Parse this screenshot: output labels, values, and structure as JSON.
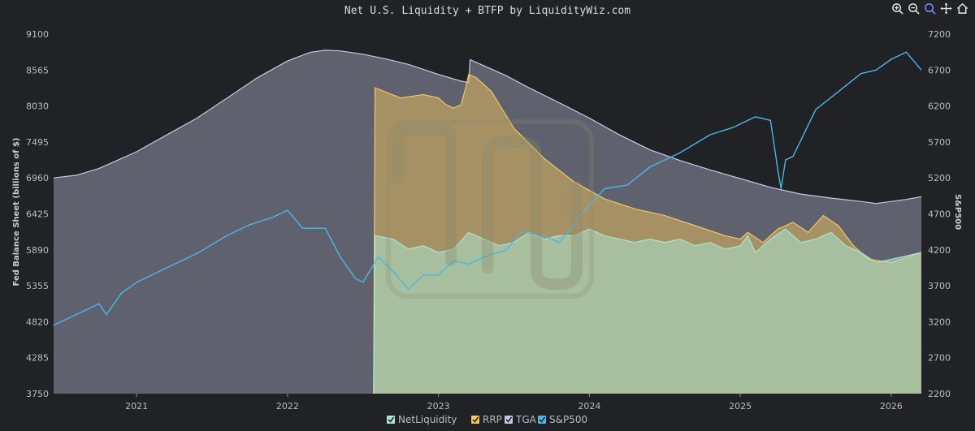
{
  "toolbar": {
    "icons": [
      "zoom-in-icon",
      "zoom-out-icon",
      "magnifier-icon",
      "pan-icon",
      "home-icon"
    ],
    "active": "magnifier-icon"
  },
  "chart_data": {
    "type": "area",
    "title": "Net U.S. Liquidity + BTFP by LiquidityWiz.com",
    "ylabel": "Fed Balance Sheet (billions of $)",
    "y2label": "S&P500",
    "xlim": [
      2020.45,
      2026.2
    ],
    "ylim": [
      3750,
      9100
    ],
    "y2lim": [
      2200,
      7200
    ],
    "x_ticks": [
      2021,
      2022,
      2023,
      2024,
      2025,
      2026
    ],
    "x_tick_labels": [
      "2021",
      "2022",
      "2023",
      "2024",
      "2025",
      "2026"
    ],
    "y_ticks": [
      3750,
      4285,
      4820,
      5355,
      5890,
      6425,
      6960,
      7495,
      8030,
      8565,
      9100
    ],
    "y2_ticks": [
      2200,
      2700,
      3200,
      3700,
      4200,
      4700,
      5200,
      5700,
      6200,
      6700,
      7200
    ],
    "legend_position": "bottom",
    "colors": {
      "NetLiquidity": "#a8e6cf",
      "RRP": "#f5c75a",
      "TGA": "#c8c8e6",
      "S&P500": "#4ab8e6",
      "background": "#202226",
      "watermark": "#8a8a6a"
    },
    "series": [
      {
        "name": "TGA",
        "axis": "left",
        "x": [
          2020.45,
          2020.6,
          2020.75,
          2020.9,
          2021.0,
          2021.2,
          2021.4,
          2021.6,
          2021.8,
          2022.0,
          2022.15,
          2022.25,
          2022.35,
          2022.5,
          2022.65,
          2022.8,
          2023.0,
          2023.15,
          2023.2,
          2023.21,
          2023.3,
          2023.45,
          2023.6,
          2023.8,
          2024.0,
          2024.2,
          2024.4,
          2024.6,
          2024.8,
          2025.0,
          2025.2,
          2025.4,
          2025.6,
          2025.8,
          2025.9,
          2026.0,
          2026.1,
          2026.2
        ],
        "values": [
          6960,
          7000,
          7100,
          7250,
          7350,
          7600,
          7850,
          8150,
          8450,
          8700,
          8830,
          8860,
          8850,
          8800,
          8730,
          8650,
          8500,
          8400,
          8380,
          8720,
          8630,
          8480,
          8300,
          8080,
          7850,
          7600,
          7380,
          7220,
          7080,
          6950,
          6820,
          6720,
          6660,
          6610,
          6580,
          6610,
          6640,
          6680
        ]
      },
      {
        "name": "RRP",
        "axis": "left",
        "x": [
          2022.57,
          2022.58,
          2022.75,
          2022.9,
          2023.0,
          2023.05,
          2023.1,
          2023.15,
          2023.18,
          2023.2,
          2023.25,
          2023.35,
          2023.5,
          2023.7,
          2023.9,
          2024.1,
          2024.3,
          2024.5,
          2024.7,
          2024.9,
          2025.0,
          2025.05,
          2025.15,
          2025.25,
          2025.35,
          2025.45,
          2025.55,
          2025.65,
          2025.75,
          2025.85,
          2026.0,
          2026.2
        ],
        "values": [
          3750,
          8300,
          8150,
          8200,
          8150,
          8050,
          8000,
          8050,
          8300,
          8500,
          8450,
          8250,
          7700,
          7250,
          6900,
          6650,
          6500,
          6400,
          6250,
          6100,
          6050,
          6150,
          6000,
          6200,
          6300,
          6150,
          6400,
          6250,
          5950,
          5750,
          5700,
          5850
        ]
      },
      {
        "name": "NetLiquidity",
        "axis": "left",
        "x": [
          2022.57,
          2022.58,
          2022.7,
          2022.8,
          2022.9,
          2023.0,
          2023.1,
          2023.2,
          2023.3,
          2023.4,
          2023.5,
          2023.6,
          2023.7,
          2023.8,
          2023.9,
          2024.0,
          2024.1,
          2024.2,
          2024.3,
          2024.4,
          2024.5,
          2024.6,
          2024.7,
          2024.8,
          2024.9,
          2025.0,
          2025.05,
          2025.1,
          2025.2,
          2025.3,
          2025.4,
          2025.5,
          2025.6,
          2025.7,
          2025.8,
          2025.9,
          2026.0,
          2026.1,
          2026.2
        ],
        "values": [
          3750,
          6100,
          6050,
          5900,
          5950,
          5850,
          5900,
          6150,
          6050,
          5950,
          6000,
          6150,
          6050,
          6100,
          6100,
          6200,
          6100,
          6050,
          6000,
          6050,
          6000,
          6050,
          5950,
          6000,
          5900,
          5950,
          6100,
          5850,
          6050,
          6200,
          6000,
          6050,
          6150,
          5950,
          5850,
          5700,
          5750,
          5800,
          5850
        ]
      },
      {
        "name": "S&P500",
        "axis": "right",
        "x": [
          2020.45,
          2020.6,
          2020.75,
          2020.8,
          2020.9,
          2021.0,
          2021.2,
          2021.4,
          2021.6,
          2021.75,
          2021.9,
          2022.0,
          2022.1,
          2022.25,
          2022.35,
          2022.45,
          2022.5,
          2022.6,
          2022.7,
          2022.8,
          2022.9,
          2023.0,
          2023.1,
          2023.2,
          2023.3,
          2023.45,
          2023.55,
          2023.7,
          2023.8,
          2023.95,
          2024.1,
          2024.25,
          2024.4,
          2024.5,
          2024.6,
          2024.8,
          2024.95,
          2025.1,
          2025.2,
          2025.25,
          2025.27,
          2025.3,
          2025.35,
          2025.5,
          2025.65,
          2025.8,
          2025.9,
          2026.0,
          2026.1,
          2026.2
        ],
        "values": [
          3150,
          3300,
          3450,
          3300,
          3600,
          3750,
          3950,
          4150,
          4400,
          4550,
          4650,
          4750,
          4500,
          4500,
          4100,
          3800,
          3750,
          4100,
          3900,
          3650,
          3850,
          3850,
          4050,
          4000,
          4100,
          4200,
          4450,
          4400,
          4300,
          4700,
          5050,
          5100,
          5350,
          5450,
          5550,
          5800,
          5900,
          6050,
          6000,
          5300,
          5050,
          5450,
          5500,
          6150,
          6400,
          6650,
          6700,
          6850,
          6950,
          6700
        ]
      }
    ]
  },
  "legend": {
    "items": [
      {
        "label": "NetLiquidity",
        "color": "#a8e6cf"
      },
      {
        "label": "RRP",
        "color": "#f5c75a"
      },
      {
        "label": "TGA",
        "color": "#c8c8e6"
      },
      {
        "label": "S&P500",
        "color": "#4ab8e6"
      }
    ]
  }
}
